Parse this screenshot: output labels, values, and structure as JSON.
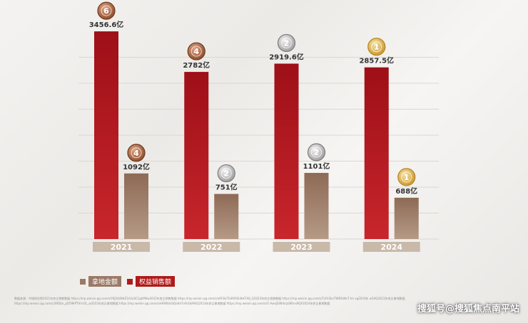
{
  "chart_data": {
    "type": "bar",
    "categories": [
      "2021",
      "2022",
      "2023",
      "2024"
    ],
    "series": [
      {
        "name": "权益销售额",
        "values": [
          3456.6,
          2782,
          2919.6,
          2857.5
        ],
        "labels": [
          "3456.6亿",
          "2782亿",
          "2919.6亿",
          "2857.5亿"
        ],
        "ranks": [
          "6",
          "4",
          "2",
          "1"
        ],
        "color": "#b5121b"
      },
      {
        "name": "拿地金额",
        "values": [
          1092,
          751,
          1101,
          688
        ],
        "labels": [
          "1092亿",
          "751亿",
          "1101亿",
          "688亿"
        ],
        "ranks": [
          "4",
          "2",
          "2",
          "1"
        ],
        "color": "#9a7a66"
      }
    ],
    "ylim": [
      0,
      3600
    ],
    "grid": true,
    "legend_position": "bottom-left"
  },
  "legend": {
    "land_label": "拿地金额",
    "sales_label": "权益销售额"
  },
  "footnote": "数据来源：中指研究院2021年房企销售数据 https://mp.weixin.qq.com/s/YKJ3tkWdZ1A2oSC1gkM6w2022年房企销售数据 https://mp.weixin.qq.com/s/eRF8uTfaRRASi4kK7A8_Q2023年房企销售数据 https://mp.weixin.qq.com/s/TvFk3knTWN5dKcT-lm ug2024年 w5AQ2021年房企拿地数据 https://mp.weixin.qq.com/s/3RDbn_pD59KPTVrrs5L_w2022年房企拿地数据 https://mp.weixin.qq.com/s/xHRNt4d3QoIteTvFbGkMSQ2023年房企拿地数据 https://mp.weixin.qq.com/s/iC-AwsJSlWdnpSlKhrs9QA2024年房企拿地数据",
  "watermark": "搜狐号@搜狐焦点南平站"
}
